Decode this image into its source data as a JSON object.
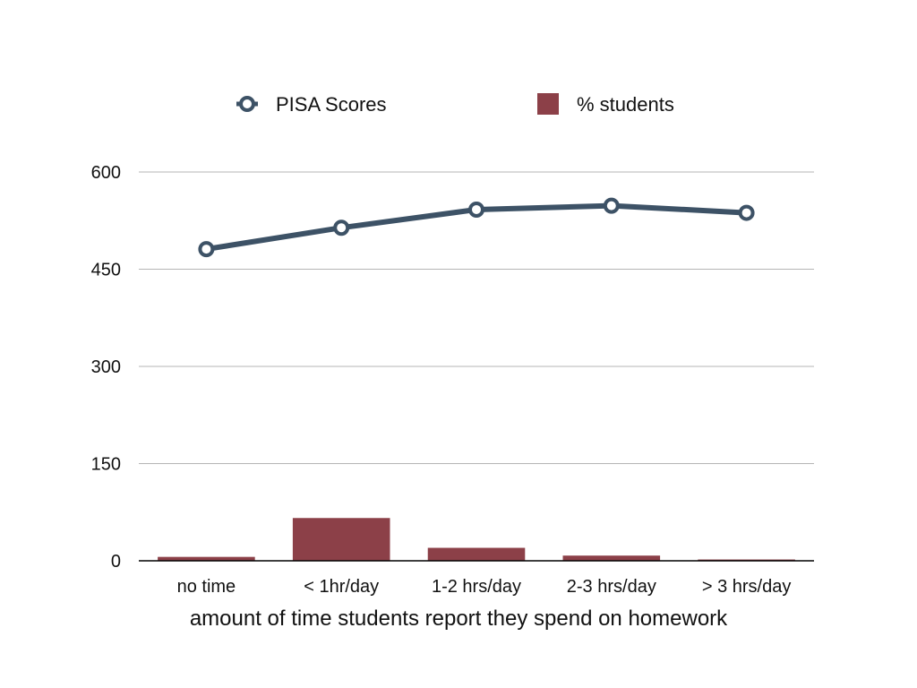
{
  "chart_data": {
    "type": "bar",
    "title": "",
    "xlabel": "amount of time students report they spend on homework",
    "ylabel": "",
    "categories": [
      "no time",
      "< 1hr/day",
      "1-2 hrs/day",
      "2-3 hrs/day",
      "> 3 hrs/day"
    ],
    "y_ticks": [
      "0",
      "150",
      "300",
      "450",
      "600"
    ],
    "ylim": [
      0,
      600
    ],
    "grid": true,
    "legend_position": "top",
    "series": [
      {
        "name": "PISA Scores",
        "type": "line",
        "color": "#3d5266",
        "values": [
          481,
          514,
          542,
          548,
          537
        ]
      },
      {
        "name": "% students",
        "type": "bar",
        "color": "#8c4048",
        "values": [
          6,
          66,
          20,
          8,
          2
        ]
      }
    ]
  }
}
